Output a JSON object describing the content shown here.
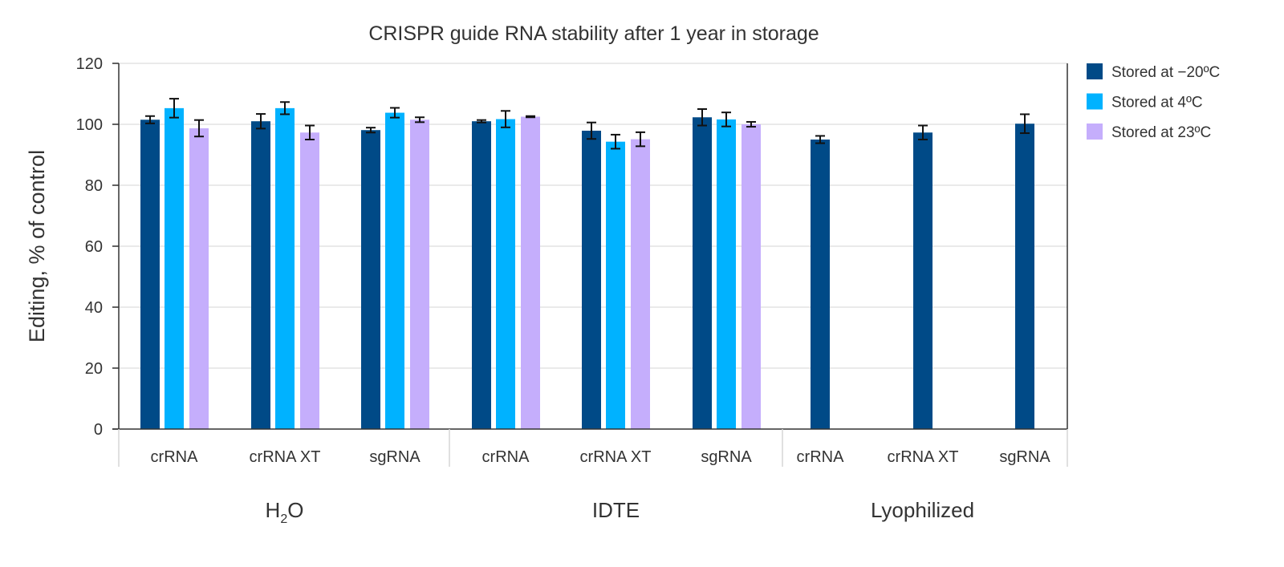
{
  "chart_data": {
    "type": "bar",
    "title": "CRISPR guide RNA stability after 1 year in storage",
    "ylabel": "Editing, % of control",
    "xlabel": "",
    "ylim": [
      0,
      120
    ],
    "yticks": [
      0,
      20,
      40,
      60,
      80,
      100,
      120
    ],
    "grid": true,
    "legend_placement": "right",
    "groups": [
      {
        "label": "H2O",
        "label_main": "H",
        "label_sub": "2",
        "label_end": "O",
        "categories": [
          "crRNA",
          "crRNA XT",
          "sgRNA"
        ]
      },
      {
        "label": "IDTE",
        "categories": [
          "crRNA",
          "crRNA XT",
          "sgRNA"
        ]
      },
      {
        "label": "Lyophilized",
        "categories": [
          "crRNA",
          "crRNA XT",
          "sgRNA"
        ]
      }
    ],
    "categories": [
      "H2O crRNA",
      "H2O crRNA XT",
      "H2O sgRNA",
      "IDTE crRNA",
      "IDTE crRNA XT",
      "IDTE sgRNA",
      "Lyophilized crRNA",
      "Lyophilized crRNA XT",
      "Lyophilized sgRNA"
    ],
    "series": [
      {
        "name": "Stored at −20ºC",
        "color": "#004a87",
        "values": [
          101.5,
          101.0,
          98.1,
          101.0,
          97.9,
          102.3,
          95.0,
          97.3,
          100.2
        ],
        "errors": [
          1.2,
          2.4,
          0.8,
          0.4,
          2.7,
          2.7,
          1.2,
          2.3,
          3.1
        ]
      },
      {
        "name": "Stored at 4ºC",
        "color": "#00b2ff",
        "values": [
          105.3,
          105.3,
          103.8,
          101.7,
          94.3,
          101.6,
          null,
          null,
          null
        ],
        "errors": [
          3.1,
          2.0,
          1.6,
          2.7,
          2.3,
          2.3,
          null,
          null,
          null
        ]
      },
      {
        "name": "Stored at 23ºC",
        "color": "#c5aefc",
        "values": [
          98.7,
          97.3,
          101.5,
          102.5,
          95.1,
          100.0,
          null,
          null,
          null
        ],
        "errors": [
          2.7,
          2.3,
          0.8,
          0.2,
          2.3,
          0.8,
          null,
          null,
          null
        ]
      }
    ]
  }
}
